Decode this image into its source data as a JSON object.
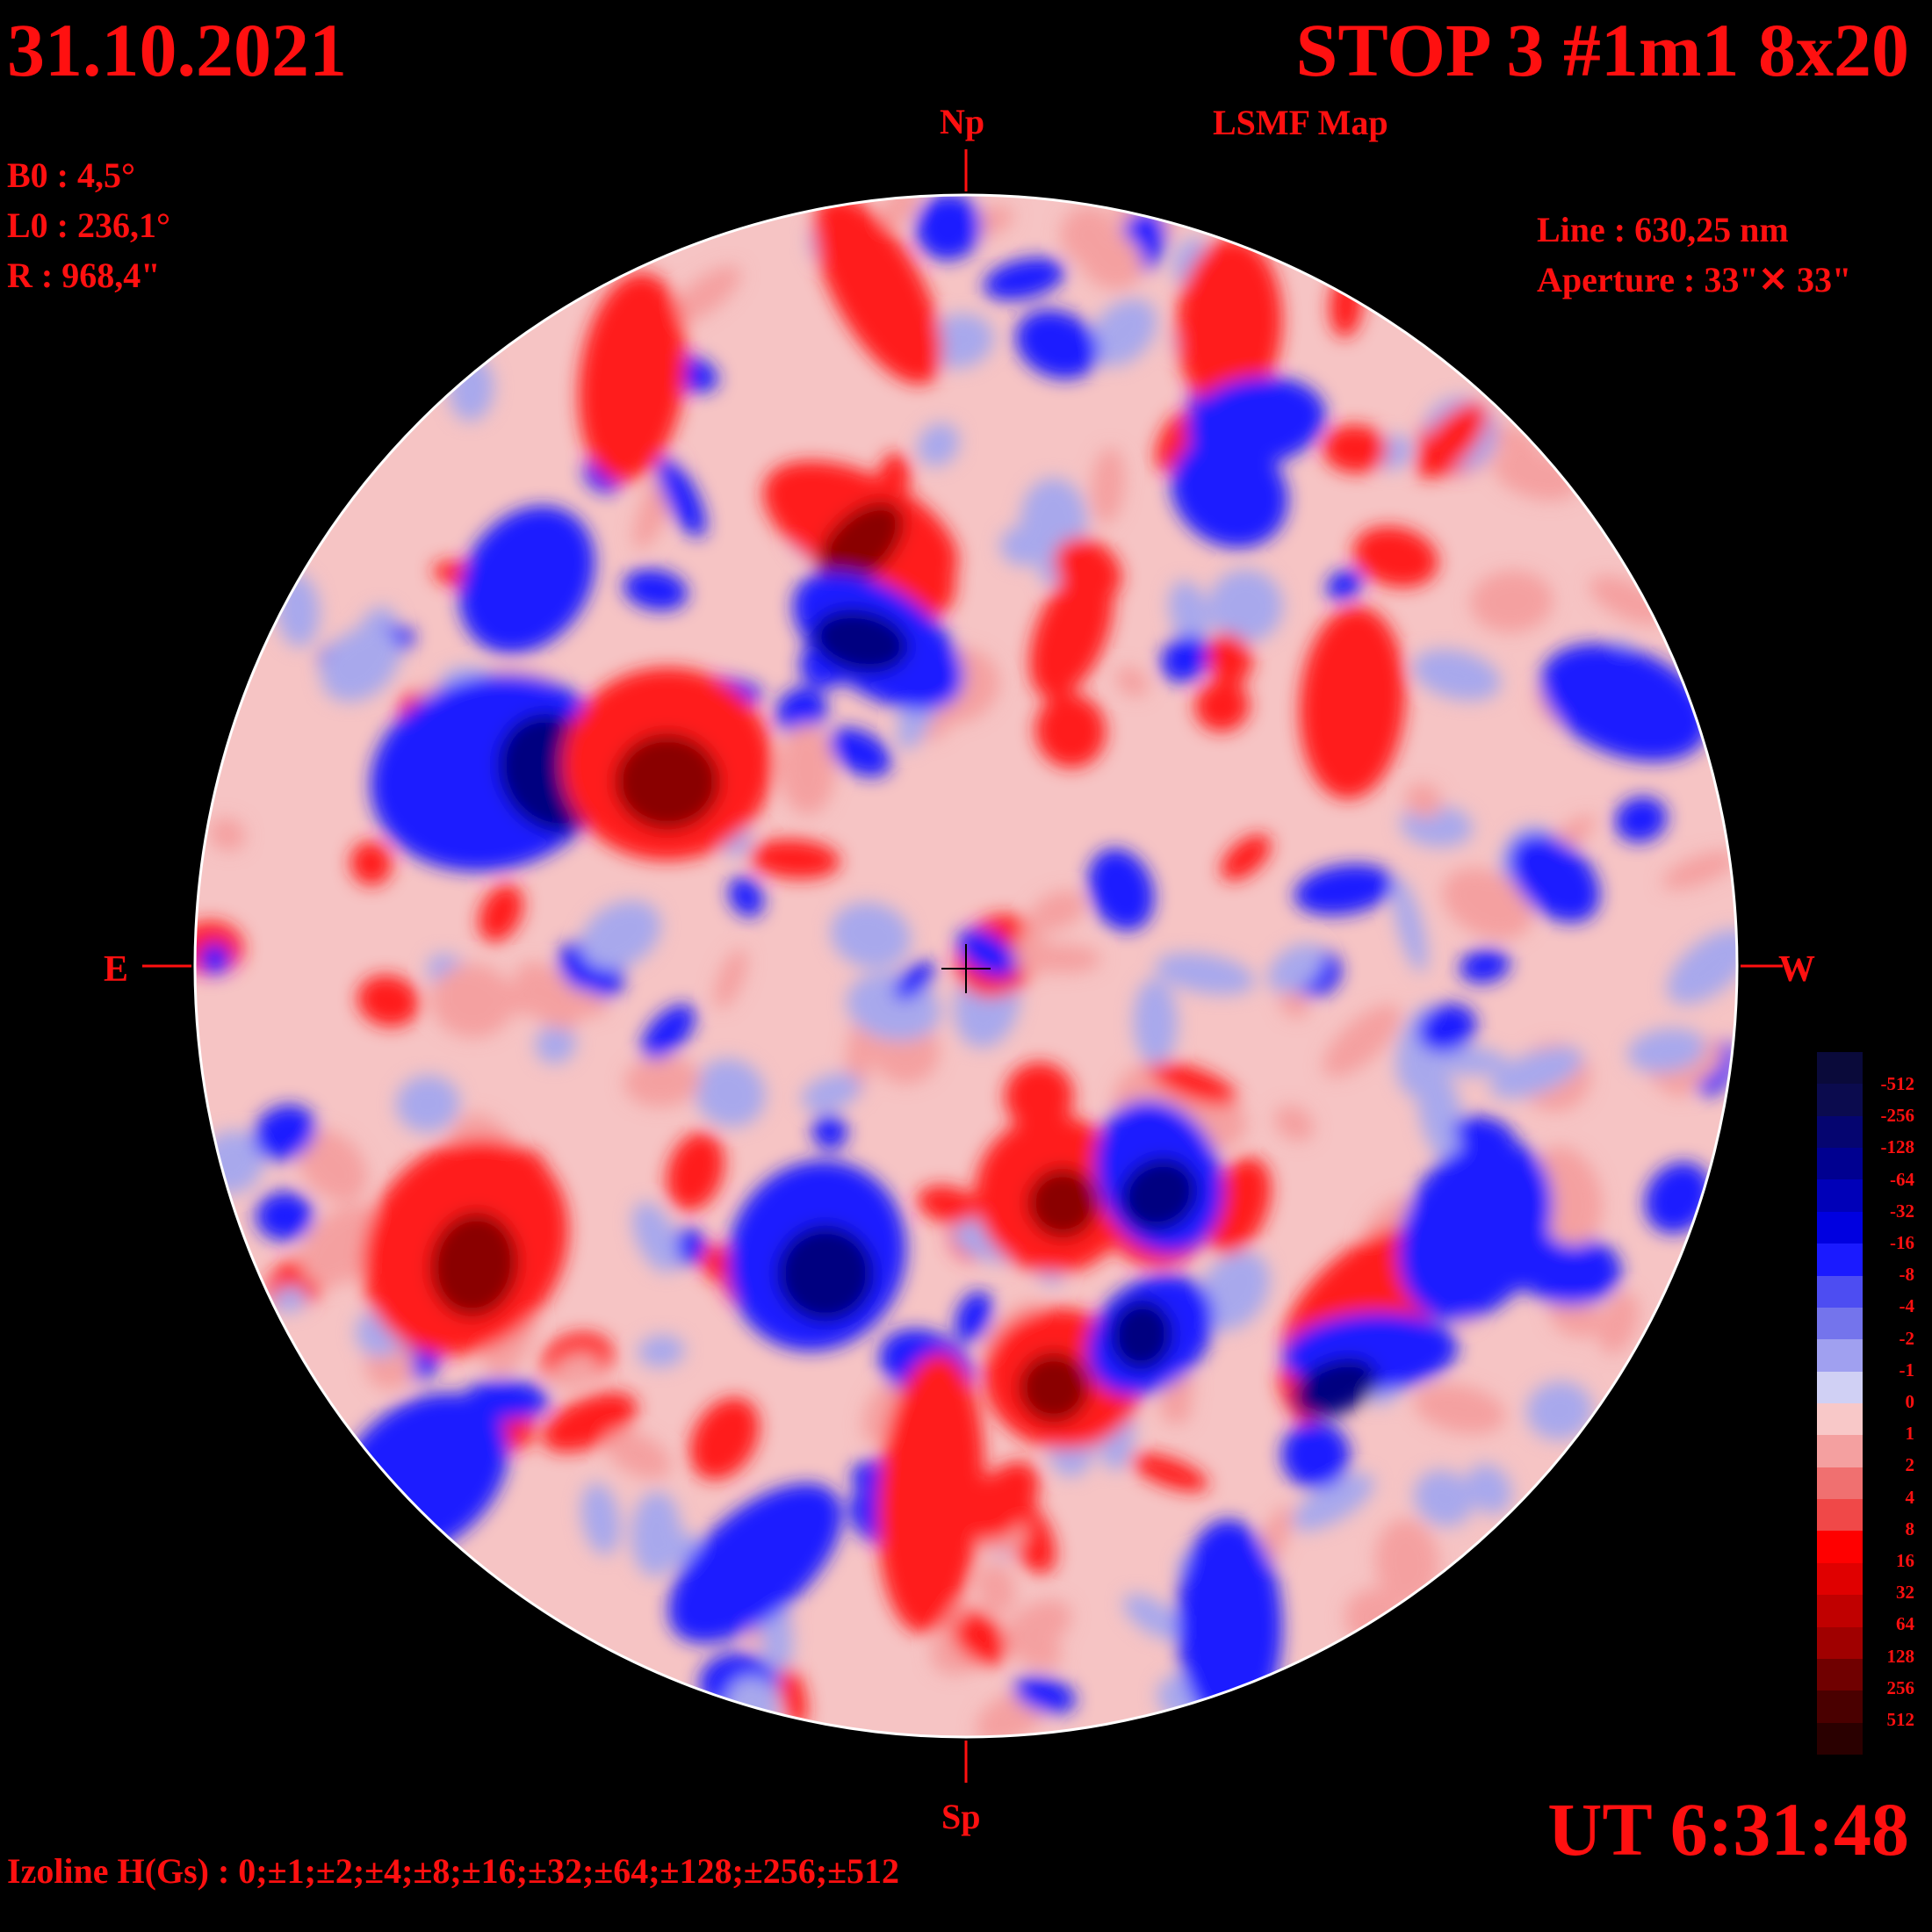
{
  "header": {
    "date": "31.10.2021",
    "title": "STOP 3 #1m1 8x20",
    "subtitle": "LSMF  Map"
  },
  "params": {
    "b0": "B0 : 4,5°",
    "l0": "L0 : 236,1°",
    "radius": "R  : 968,4\""
  },
  "instrument": {
    "line": "Line :  630,25 nm",
    "aperture": "Aperture : 33\"✕ 33\""
  },
  "directions": {
    "north": "Np",
    "south": "Sp",
    "east": "E",
    "west": "W"
  },
  "time": "UT 6:31:48",
  "izoline": "Izoline H(Gs) : 0;±1;±2;±4;±8;±16;±32;±64;±128;±256;±512",
  "legend": {
    "labels": [
      "-512",
      "-256",
      "-128",
      "-64",
      "-32",
      "-16",
      "-8",
      "-4",
      "-2",
      "-1",
      "0",
      "1",
      "2",
      "4",
      "8",
      "16",
      "32",
      "64",
      "128",
      "256",
      "512"
    ],
    "colors": [
      "#0a0a3a",
      "#0b0b4e",
      "#050570",
      "#000090",
      "#0000b8",
      "#0000e0",
      "#1a1aff",
      "#4d4df2",
      "#7474ec",
      "#a0a0f0",
      "#d0d0f4",
      "#f8c8c8",
      "#f4a0a0",
      "#f07070",
      "#f04848",
      "#ff0000",
      "#e00000",
      "#c00000",
      "#a00000",
      "#700000",
      "#4a0000",
      "#2a0000"
    ]
  },
  "map": {
    "colors": {
      "strong_positive": "#8a0000",
      "positive": "#ff1a1a",
      "weak_positive": "#f4a0a0",
      "weak_negative": "#a8a8ec",
      "negative": "#1a1aff",
      "strong_negative": "#000080"
    }
  }
}
